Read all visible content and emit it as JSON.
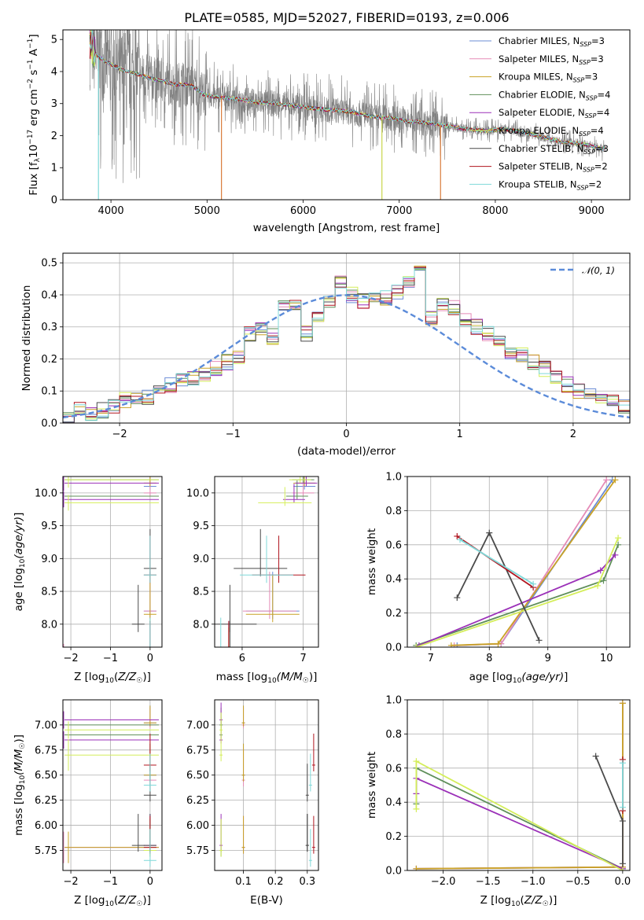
{
  "figure": {
    "title": "PLATE=0585, MJD=52027, FIBERID=0193, z=0.006"
  },
  "models": [
    {
      "name": "Chabrier MILES, N",
      "sub": "SSP",
      "suffix": "=3",
      "color": "#6b8cd6"
    },
    {
      "name": "Salpeter MILES, N",
      "sub": "SSP",
      "suffix": "=3",
      "color": "#e58bb7"
    },
    {
      "name": "Kroupa MILES, N",
      "sub": "SSP",
      "suffix": "=3",
      "color": "#c9a227"
    },
    {
      "name": "Chabrier ELODIE, N",
      "sub": "SSP",
      "suffix": "=4",
      "color": "#5f8f5a"
    },
    {
      "name": "Salpeter ELODIE, N",
      "sub": "SSP",
      "suffix": "=4",
      "color": "#9b30b8"
    },
    {
      "name": "Kroupa ELODIE, N",
      "sub": "SSP",
      "suffix": "=4",
      "color": "#d4ee5a"
    },
    {
      "name": "Chabrier STELIB, N",
      "sub": "SSP",
      "suffix": "=3",
      "color": "#4a4a4a"
    },
    {
      "name": "Salpeter STELIB, N",
      "sub": "SSP",
      "suffix": "=2",
      "color": "#b0151f"
    },
    {
      "name": "Kroupa STELIB, N",
      "sub": "SSP",
      "suffix": "=2",
      "color": "#7fd9d9"
    }
  ],
  "chart_data": [
    {
      "id": "spectrum",
      "type": "line",
      "xlabel": "wavelength [Angstrom, rest frame]",
      "ylabel_pre": "Flux [f",
      "ylabel_sub": "λ",
      "ylabel_mid": "10",
      "ylabel_sup1": "−17",
      "ylabel_mid2": " erg cm",
      "ylabel_sup2": "−2",
      "ylabel_mid3": " s",
      "ylabel_sup3": "−1",
      "ylabel_mid4": " A",
      "ylabel_sup4": "−1",
      "ylabel_end": "]",
      "xlim": [
        3500,
        9400
      ],
      "ylim": [
        0,
        5.3
      ],
      "xticks": [
        4000,
        5000,
        6000,
        7000,
        8000,
        9000
      ],
      "yticks": [
        0,
        1,
        2,
        3,
        4,
        5
      ],
      "data_color": "#808080",
      "model_x": [
        3780,
        3850,
        3950,
        4050,
        4150,
        4250,
        4350,
        4450,
        4550,
        4650,
        4750,
        4850,
        4950,
        5100,
        5300,
        5500,
        5700,
        5900,
        6100,
        6300,
        6500,
        6700,
        6900,
        7100,
        7300,
        7500,
        7700,
        7900,
        8100,
        8300,
        8500,
        8700,
        8900,
        9100
      ],
      "model_y": [
        4.9,
        4.5,
        4.3,
        4.15,
        4.0,
        3.95,
        3.85,
        3.75,
        3.7,
        3.6,
        3.6,
        3.55,
        3.3,
        3.2,
        3.15,
        3.05,
        3.0,
        2.95,
        2.85,
        2.8,
        2.75,
        2.6,
        2.55,
        2.45,
        2.4,
        2.3,
        2.2,
        2.15,
        2.2,
        2.1,
        1.95,
        1.8,
        1.75,
        1.6
      ]
    },
    {
      "id": "residual-histogram",
      "type": "histogram",
      "xlabel": "(data-model)/error",
      "ylabel": "Normed distribution",
      "xlim": [
        -2.5,
        2.5
      ],
      "ylim": [
        0,
        0.53
      ],
      "xticks": [
        -2,
        -1,
        0,
        1,
        2
      ],
      "yticks": [
        0.0,
        0.1,
        0.2,
        0.3,
        0.4,
        0.5
      ],
      "normal_label": "𝒩(0, 1)",
      "normal_color": "#5b8bd9",
      "bin_edges_start": -2.5,
      "bin_width": 0.1,
      "base_values": [
        0.01,
        0.04,
        0.03,
        0.04,
        0.05,
        0.07,
        0.07,
        0.08,
        0.1,
        0.12,
        0.13,
        0.14,
        0.15,
        0.17,
        0.19,
        0.21,
        0.28,
        0.29,
        0.27,
        0.36,
        0.37,
        0.28,
        0.33,
        0.38,
        0.44,
        0.4,
        0.38,
        0.4,
        0.39,
        0.41,
        0.44,
        0.47,
        0.33,
        0.37,
        0.36,
        0.32,
        0.3,
        0.28,
        0.26,
        0.22,
        0.21,
        0.19,
        0.17,
        0.14,
        0.12,
        0.1,
        0.1,
        0.08,
        0.07,
        0.05,
        0.04,
        0.02,
        0.02,
        0.03
      ]
    },
    {
      "id": "age-vs-Z",
      "type": "errorbar",
      "xlabel_pre": "Z [log",
      "xlabel_sub": "10",
      "xlabel_mid": "(",
      "xlabel_it": "Z/Z",
      "xlabel_sun": "☉",
      "xlabel_end": ")]",
      "ylabel_pre": "age  [log",
      "ylabel_sub": "10",
      "ylabel_it": "(age/yr)",
      "ylabel_end": "]",
      "xlim": [
        -2.2,
        0.3
      ],
      "ylim": [
        7.65,
        10.25
      ],
      "xticks": [
        -2,
        -1,
        0
      ],
      "yticks": [
        8.0,
        8.5,
        9.0,
        9.5,
        10.0
      ]
    },
    {
      "id": "age-vs-mass",
      "type": "errorbar",
      "xlabel_pre": "mass [log",
      "xlabel_sub": "10",
      "xlabel_it": "(M/M",
      "xlabel_sun": "☉",
      "xlabel_end": ")]",
      "xlim": [
        5.55,
        7.25
      ],
      "ylim": [
        7.65,
        10.25
      ],
      "xticks": [
        6,
        7
      ],
      "yticks": [
        8.0,
        8.5,
        9.0,
        9.5,
        10.0
      ]
    },
    {
      "id": "massweight-vs-age",
      "type": "line",
      "xlabel_pre": "age  [log",
      "xlabel_sub": "10",
      "xlabel_it": "(age/yr)",
      "xlabel_end": "]",
      "ylabel": "mass weight",
      "xlim": [
        6.6,
        10.4
      ],
      "ylim": [
        0,
        1
      ],
      "xticks": [
        7,
        8,
        9,
        10
      ],
      "yticks": [
        0.0,
        0.2,
        0.4,
        0.6,
        0.8,
        1.0
      ]
    },
    {
      "id": "mass-vs-Z",
      "type": "errorbar",
      "xlabel_pre": "Z [log",
      "xlabel_sub": "10",
      "xlabel_mid": "(",
      "xlabel_it": "Z/Z",
      "xlabel_sun": "☉",
      "xlabel_end": ")]",
      "ylabel_pre": "mass [log",
      "ylabel_sub": "10",
      "ylabel_it": "(M/M",
      "ylabel_sun": "☉",
      "ylabel_end": ")]",
      "xlim": [
        -2.2,
        0.3
      ],
      "ylim": [
        5.55,
        7.25
      ],
      "xticks": [
        -2,
        -1,
        0
      ],
      "yticks": [
        5.75,
        6.0,
        6.25,
        6.5,
        6.75,
        7.0
      ]
    },
    {
      "id": "mass-vs-ebv",
      "type": "errorbar",
      "xlabel": "E(B-V)",
      "xlim": [
        0.01,
        0.335
      ],
      "ylim": [
        5.55,
        7.25
      ],
      "xticks": [
        0.1,
        0.2,
        0.3
      ],
      "yticks": [
        5.75,
        6.0,
        6.25,
        6.5,
        6.75,
        7.0
      ]
    },
    {
      "id": "massweight-vs-Z",
      "type": "line",
      "xlabel_pre": "Z [log",
      "xlabel_sub": "10",
      "xlabel_mid": "(",
      "xlabel_it": "Z/Z",
      "xlabel_sun": "☉",
      "xlabel_end": ")]",
      "ylabel": "mass weight",
      "xlim": [
        -2.4,
        0.08
      ],
      "ylim": [
        0,
        1
      ],
      "xticks": [
        -2.0,
        -1.5,
        -1.0,
        -0.5,
        0.0
      ],
      "yticks": [
        0.0,
        0.2,
        0.4,
        0.6,
        0.8,
        1.0
      ]
    }
  ],
  "ssp_fits": [
    {
      "model": 0,
      "points": [
        {
          "age": 7.45,
          "Z": -2.3,
          "mass": 5.78,
          "ebv": 0.1,
          "w": 0.01
        },
        {
          "age": 8.2,
          "Z": 0.0,
          "mass": 6.5,
          "ebv": 0.1,
          "w": 0.02
        },
        {
          "age": 10.1,
          "Z": 0.0,
          "mass": 7.02,
          "ebv": 0.1,
          "w": 0.98
        }
      ]
    },
    {
      "model": 1,
      "points": [
        {
          "age": 7.4,
          "Z": -2.3,
          "mass": 5.78,
          "ebv": 0.1,
          "w": 0.01
        },
        {
          "age": 8.2,
          "Z": 0.0,
          "mass": 6.45,
          "ebv": 0.1,
          "w": 0.02
        },
        {
          "age": 10.0,
          "Z": 0.0,
          "mass": 7.0,
          "ebv": 0.1,
          "w": 0.98
        }
      ]
    },
    {
      "model": 2,
      "points": [
        {
          "age": 7.35,
          "Z": -2.3,
          "mass": 5.78,
          "ebv": 0.1,
          "w": 0.01
        },
        {
          "age": 8.15,
          "Z": 0.0,
          "mass": 6.5,
          "ebv": 0.1,
          "w": 0.02
        },
        {
          "age": 10.15,
          "Z": 0.0,
          "mass": 7.02,
          "ebv": 0.1,
          "w": 0.98
        }
      ]
    },
    {
      "model": 3,
      "points": [
        {
          "age": 6.75,
          "Z": 0.0,
          "mass": 5.75,
          "ebv": 0.03,
          "w": 0.01
        },
        {
          "age": 9.95,
          "Z": -2.3,
          "mass": 6.9,
          "ebv": 0.03,
          "w": 0.39
        },
        {
          "age": 10.2,
          "Z": -2.3,
          "mass": 7.0,
          "ebv": 0.03,
          "w": 0.6
        }
      ]
    },
    {
      "model": 4,
      "points": [
        {
          "age": 6.8,
          "Z": 0.0,
          "mass": 5.8,
          "ebv": 0.03,
          "w": 0.01
        },
        {
          "age": 9.9,
          "Z": -2.3,
          "mass": 6.85,
          "ebv": 0.03,
          "w": 0.45
        },
        {
          "age": 10.15,
          "Z": -2.3,
          "mass": 7.05,
          "ebv": 0.03,
          "w": 0.54
        }
      ]
    },
    {
      "model": 5,
      "points": [
        {
          "age": 6.75,
          "Z": 0.0,
          "mass": 5.75,
          "ebv": 0.03,
          "w": 0.0
        },
        {
          "age": 9.85,
          "Z": -2.3,
          "mass": 6.7,
          "ebv": 0.03,
          "w": 0.36
        },
        {
          "age": 10.2,
          "Z": -2.3,
          "mass": 6.95,
          "ebv": 0.03,
          "w": 0.64
        }
      ]
    },
    {
      "model": 6,
      "points": [
        {
          "age": 7.45,
          "Z": 0.0,
          "mass": 5.8,
          "ebv": 0.3,
          "w": 0.29
        },
        {
          "age": 8.0,
          "Z": -0.3,
          "mass": 5.8,
          "ebv": 0.3,
          "w": 0.67
        },
        {
          "age": 8.85,
          "Z": 0.0,
          "mass": 6.3,
          "ebv": 0.3,
          "w": 0.04
        }
      ]
    },
    {
      "model": 7,
      "points": [
        {
          "age": 7.45,
          "Z": 0.0,
          "mass": 5.78,
          "ebv": 0.32,
          "w": 0.65
        },
        {
          "age": 8.75,
          "Z": 0.0,
          "mass": 6.6,
          "ebv": 0.32,
          "w": 0.35
        }
      ]
    },
    {
      "model": 8,
      "points": [
        {
          "age": 7.5,
          "Z": 0.0,
          "mass": 5.65,
          "ebv": 0.31,
          "w": 0.63
        },
        {
          "age": 8.75,
          "Z": 0.0,
          "mass": 6.4,
          "ebv": 0.31,
          "w": 0.37
        }
      ]
    }
  ]
}
